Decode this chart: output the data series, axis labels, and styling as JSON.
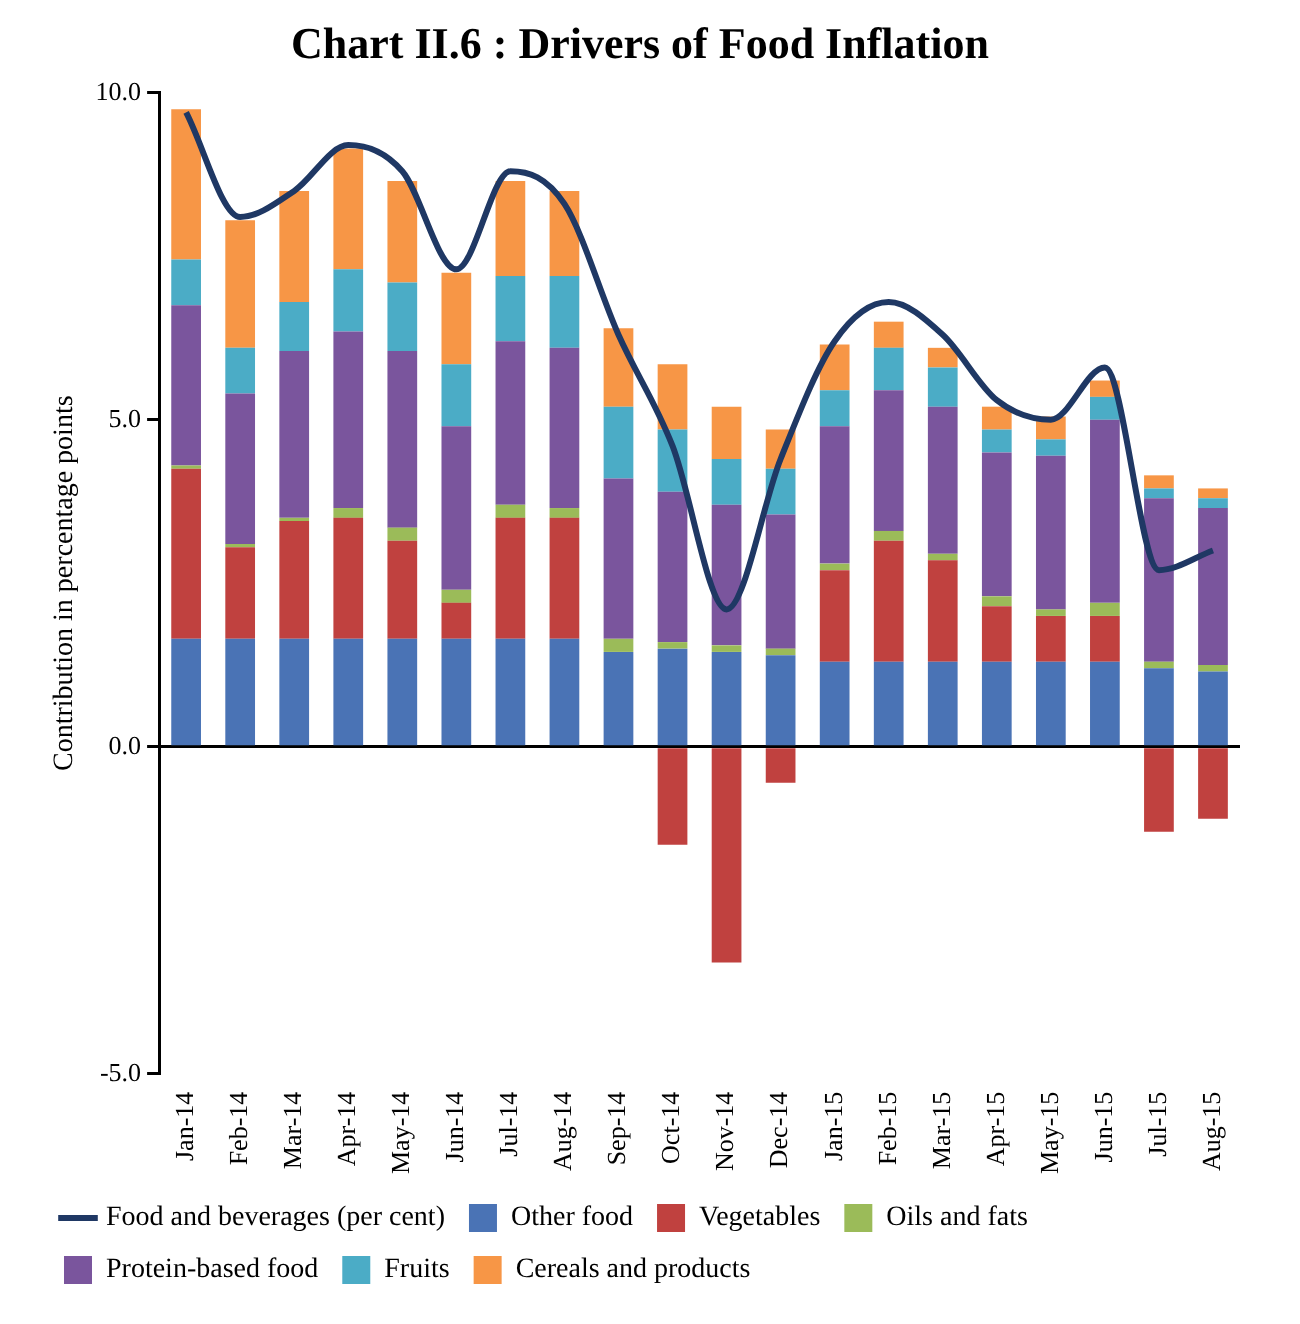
{
  "chart_data": {
    "type": "bar",
    "stacked": true,
    "title": "Chart II.6 : Drivers of Food Inflation",
    "ylabel": "Contribution in percentage points",
    "categories": [
      "Jan-14",
      "Feb-14",
      "Mar-14",
      "Apr-14",
      "May-14",
      "Jun-14",
      "Jul-14",
      "Aug-14",
      "Sep-14",
      "Oct-14",
      "Nov-14",
      "Dec-14",
      "Jan-15",
      "Feb-15",
      "Mar-15",
      "Apr-15",
      "May-15",
      "Jun-15",
      "Jul-15",
      "Aug-15"
    ],
    "ylim": [
      -5,
      10
    ],
    "yticks": [
      {
        "value": -5,
        "label": "-5.0"
      },
      {
        "value": 0,
        "label": "0.0"
      },
      {
        "value": 5,
        "label": "5.0"
      },
      {
        "value": 10,
        "label": "10.0"
      }
    ],
    "legend": "bottom",
    "series": [
      {
        "name": "Other food",
        "color": "#4a73b5",
        "values": [
          1.65,
          1.65,
          1.65,
          1.65,
          1.65,
          1.65,
          1.65,
          1.65,
          1.45,
          1.5,
          1.45,
          1.4,
          1.3,
          1.3,
          1.3,
          1.3,
          1.3,
          1.3,
          1.2,
          1.15
        ]
      },
      {
        "name": "Vegetables",
        "color": "#c0413f",
        "values": [
          2.6,
          1.4,
          1.8,
          1.85,
          1.5,
          0.55,
          1.85,
          1.85,
          0,
          -1.5,
          -3.3,
          -0.55,
          1.4,
          1.85,
          1.55,
          0.85,
          0.7,
          0.7,
          -1.3,
          -1.1
        ]
      },
      {
        "name": "Oils and fats",
        "color": "#9bbb59",
        "values": [
          0.05,
          0.05,
          0.05,
          0.15,
          0.2,
          0.2,
          0.2,
          0.15,
          0.2,
          0.1,
          0.1,
          0.1,
          0.1,
          0.15,
          0.1,
          0.15,
          0.1,
          0.2,
          0.1,
          0.1
        ]
      },
      {
        "name": "Protein-based food",
        "color": "#7a559d",
        "values": [
          2.45,
          2.3,
          2.55,
          2.7,
          2.7,
          2.5,
          2.5,
          2.45,
          2.45,
          2.3,
          2.15,
          2.05,
          2.1,
          2.15,
          2.25,
          2.2,
          2.35,
          2.8,
          2.5,
          2.4
        ]
      },
      {
        "name": "Fruits",
        "color": "#4bacc6",
        "values": [
          0.7,
          0.7,
          0.75,
          0.95,
          1.05,
          0.95,
          1.0,
          1.1,
          1.1,
          0.95,
          0.7,
          0.7,
          0.55,
          0.65,
          0.6,
          0.35,
          0.25,
          0.35,
          0.15,
          0.15
        ]
      },
      {
        "name": "Cereals and products",
        "color": "#f79646",
        "values": [
          2.3,
          1.95,
          1.7,
          1.85,
          1.55,
          1.4,
          1.45,
          1.3,
          1.2,
          1.0,
          0.8,
          0.6,
          0.7,
          0.4,
          0.3,
          0.35,
          0.35,
          0.25,
          0.2,
          0.15
        ]
      },
      {
        "name": "Food and beverages (per cent)",
        "type": "line",
        "color": "#1f3864",
        "values": [
          9.7,
          8.1,
          8.5,
          9.2,
          8.8,
          7.3,
          8.8,
          8.3,
          6.3,
          4.6,
          2.1,
          4.4,
          6.2,
          6.8,
          6.3,
          5.3,
          5.0,
          5.8,
          2.7,
          3.0
        ]
      }
    ]
  }
}
